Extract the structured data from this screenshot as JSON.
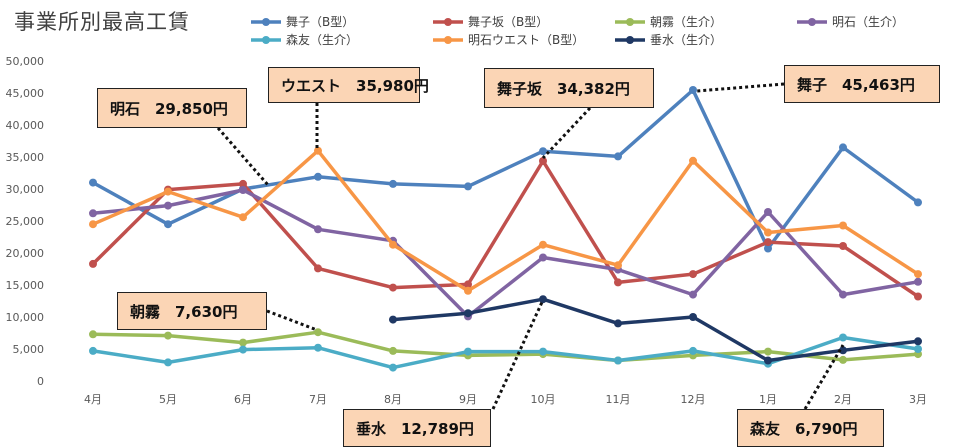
{
  "chart_data": {
    "type": "line",
    "title": "事業所別最高工賃",
    "categories": [
      "4月",
      "5月",
      "6月",
      "7月",
      "8月",
      "9月",
      "10月",
      "11月",
      "12月",
      "1月",
      "2月",
      "3月"
    ],
    "ylim": [
      0,
      50000
    ],
    "yticks": [
      "0",
      "5,000",
      "10,000",
      "15,000",
      "20,000",
      "25,000",
      "30,000",
      "35,000",
      "40,000",
      "45,000",
      "50,000"
    ],
    "legend_position": "top",
    "grid": false,
    "series": [
      {
        "name": "舞子（B型）",
        "color": "#4e81bd",
        "values": [
          31000,
          24500,
          30000,
          31900,
          30800,
          30400,
          35900,
          35100,
          45463,
          20700,
          36500,
          27900
        ]
      },
      {
        "name": "舞子坂（B型）",
        "color": "#c0504d",
        "values": [
          18300,
          29900,
          30800,
          17600,
          14600,
          15100,
          34382,
          15400,
          16700,
          21700,
          21100,
          13200
        ]
      },
      {
        "name": "朝霧（生介）",
        "color": "#9bbb59",
        "values": [
          7300,
          7100,
          6000,
          7630,
          4700,
          4000,
          4200,
          3200,
          4000,
          4600,
          3300,
          4200
        ]
      },
      {
        "name": "明石（生介）",
        "color": "#8064a2",
        "values": [
          26200,
          27400,
          29850,
          23700,
          21900,
          10100,
          19300,
          17400,
          13500,
          26400,
          13500,
          15500
        ]
      },
      {
        "name": "森友（生介）",
        "color": "#4bacc6",
        "values": [
          4700,
          2900,
          4900,
          5200,
          2100,
          4600,
          4600,
          3200,
          4700,
          2700,
          6790,
          5000
        ]
      },
      {
        "name": "明石ウエスト（B型）",
        "color": "#f79646",
        "values": [
          24500,
          29600,
          25600,
          35980,
          21300,
          14100,
          21300,
          18100,
          34400,
          23200,
          24300,
          16700
        ]
      },
      {
        "name": "垂水（生介）",
        "color": "#1f3864",
        "values": [
          null,
          null,
          null,
          null,
          9600,
          10600,
          12789,
          9000,
          10000,
          3200,
          4800,
          6200
        ]
      }
    ],
    "annotations": [
      {
        "text": "明石　29,850円",
        "series": 3,
        "index": 2
      },
      {
        "text": "ウエスト　35,980円",
        "series": 5,
        "index": 3
      },
      {
        "text": "舞子坂　34,382円",
        "series": 1,
        "index": 6
      },
      {
        "text": "舞子　45,463円",
        "series": 0,
        "index": 8
      },
      {
        "text": "朝霧　7,630円",
        "series": 2,
        "index": 3
      },
      {
        "text": "垂水　12,789円",
        "series": 6,
        "index": 6
      },
      {
        "text": "森友　6,790円",
        "series": 4,
        "index": 10
      }
    ]
  }
}
